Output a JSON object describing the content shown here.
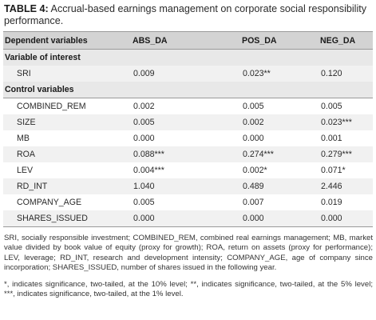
{
  "caption": {
    "label": "TABLE 4:",
    "text": " Accrual-based earnings management on corporate social responsibility performance."
  },
  "table": {
    "headers": [
      "Dependent variables",
      "ABS_DA",
      "POS_DA",
      "NEG_DA"
    ],
    "section_interest": "Variable of interest",
    "interest_rows": [
      {
        "name": "SRI",
        "abs": "0.009",
        "pos": "0.023**",
        "neg": "0.120"
      }
    ],
    "section_control": "Control variables",
    "control_rows": [
      {
        "name": "COMBINED_REM",
        "abs": "0.002",
        "pos": "0.005",
        "neg": "0.005"
      },
      {
        "name": "SIZE",
        "abs": "0.005",
        "pos": "0.002",
        "neg": "0.023***"
      },
      {
        "name": "MB",
        "abs": "0.000",
        "pos": "0.000",
        "neg": "0.001"
      },
      {
        "name": "ROA",
        "abs": "0.088***",
        "pos": "0.274***",
        "neg": "0.279***"
      },
      {
        "name": "LEV",
        "abs": "0.004***",
        "pos": "0.002*",
        "neg": "0.071*"
      },
      {
        "name": "RD_INT",
        "abs": "1.040",
        "pos": "0.489",
        "neg": "2.446"
      },
      {
        "name": "COMPANY_AGE",
        "abs": "0.005",
        "pos": "0.007",
        "neg": "0.019"
      },
      {
        "name": "SHARES_ISSUED",
        "abs": "0.000",
        "pos": "0.000",
        "neg": "0.000"
      }
    ]
  },
  "notes": {
    "abbreviations": "SRI, socially responsible investment; COMBINED_REM, combined real earnings management; MB, market value divided by book value of equity (proxy for growth); ROA, return on assets (proxy for performance); LEV, leverage; RD_INT, research and development intensity; COMPANY_AGE, age of company since incorporation; SHARES_ISSUED, number of shares issued in the following year.",
    "significance": "*, indicates significance, two-tailed, at the 10% level; **, indicates significance, two-tailed, at the 5% level; ***, indicates significance, two-tailed, at the 1% level."
  }
}
